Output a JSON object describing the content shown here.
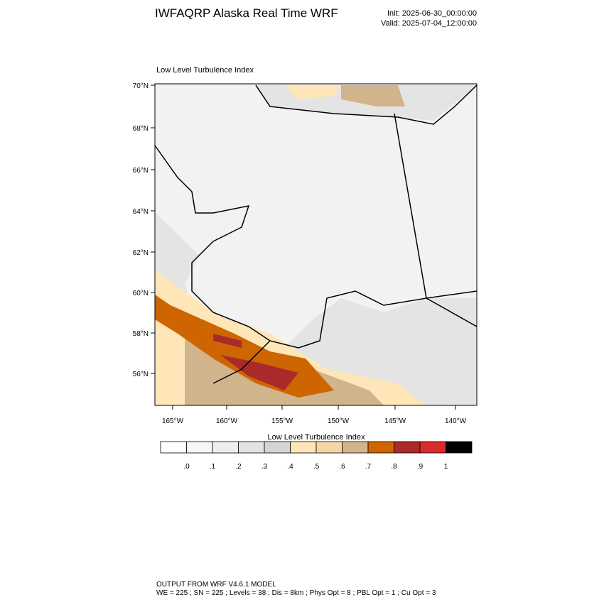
{
  "header": {
    "title": "IWFAQRP Alaska Real Time WRF",
    "init": "Init: 2025-06-30_00:00:00",
    "valid": "Valid: 2025-07-04_12:00:00"
  },
  "map": {
    "subtitle": "Low Level Turbulence Index",
    "lat_labels": [
      "70°N",
      "68°N",
      "66°N",
      "64°N",
      "62°N",
      "60°N",
      "58°N",
      "56°N"
    ],
    "lon_labels": [
      "165°W",
      "160°W",
      "155°W",
      "150°W",
      "145°W",
      "140°W"
    ]
  },
  "colorbar": {
    "title": "Low Level Turbulence Index",
    "colors": [
      "#ffffff",
      "#f7f7f7",
      "#eeeeee",
      "#e2e2e2",
      "#d4d4d4",
      "#ffe6b8",
      "#f4d6a6",
      "#d2b48c",
      "#cd6600",
      "#aa2a2a",
      "#d92b2b",
      "#000000"
    ],
    "labels": [
      ".0",
      ".1",
      ".2",
      ".3",
      ".4",
      ".5",
      ".6",
      ".7",
      ".8",
      ".9",
      "1"
    ]
  },
  "footer": {
    "line1": "OUTPUT FROM WRF V4.6.1 MODEL",
    "line2": "WE = 225 ; SN = 225 ; Levels = 38 ; Dis = 8km ; Phys Opt = 8 ; PBL Opt = 1 ; Cu Opt = 3"
  }
}
